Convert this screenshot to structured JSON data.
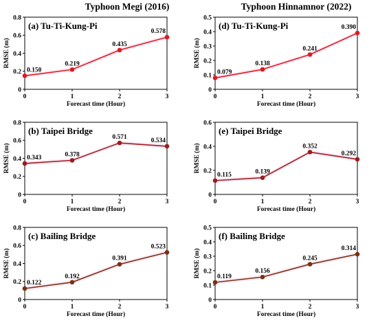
{
  "column_titles": [
    "Typhoon Megi (2016)",
    "Typhoon Hinnamnor (2022)"
  ],
  "chart_data": [
    {
      "type": "line",
      "panel": "(a) Tu-Ti-Kung-Pi",
      "column": "Typhoon Megi (2016)",
      "x": [
        0,
        1,
        2,
        3
      ],
      "values": [
        0.15,
        0.219,
        0.435,
        0.578
      ],
      "value_labels": [
        "0.150",
        "0.219",
        "0.435",
        "0.578"
      ],
      "xlabel": "Forecast time (Hour)",
      "ylabel": "RMSE (m)",
      "xlim": [
        0,
        3
      ],
      "ylim": [
        0,
        0.8
      ],
      "yticks": [
        "0",
        "0.2",
        "0.4",
        "0.6",
        "0.8"
      ],
      "xticks": [
        "0",
        "1",
        "2",
        "3"
      ],
      "color": "#e0191f",
      "grid": false
    },
    {
      "type": "line",
      "panel": "(b) Taipei Bridge",
      "column": "Typhoon Megi (2016)",
      "x": [
        0,
        1,
        2,
        3
      ],
      "values": [
        0.343,
        0.378,
        0.571,
        0.534
      ],
      "value_labels": [
        "0.343",
        "0.378",
        "0.571",
        "0.534"
      ],
      "xlabel": "Forecast time (Hour)",
      "ylabel": "RMSE (m)",
      "xlim": [
        0,
        3
      ],
      "ylim": [
        0,
        0.8
      ],
      "yticks": [
        "0",
        "0.2",
        "0.4",
        "0.6",
        "0.8"
      ],
      "xticks": [
        "0",
        "1",
        "2",
        "3"
      ],
      "color": "#9b1c1c",
      "grid": false
    },
    {
      "type": "line",
      "panel": "(c) Bailing Bridge",
      "column": "Typhoon Megi (2016)",
      "x": [
        0,
        1,
        2,
        3
      ],
      "values": [
        0.122,
        0.192,
        0.391,
        0.523
      ],
      "value_labels": [
        "0.122",
        "0.192",
        "0.391",
        "0.523"
      ],
      "xlabel": "Forecast time (Hour)",
      "ylabel": "RMSE (m)",
      "xlim": [
        0,
        3
      ],
      "ylim": [
        0,
        0.8
      ],
      "yticks": [
        "0",
        "0.2",
        "0.4",
        "0.6",
        "0.8"
      ],
      "xticks": [
        "0",
        "1",
        "2",
        "3"
      ],
      "color": "#7a3010",
      "grid": false
    },
    {
      "type": "line",
      "panel": "(d) Tu-Ti-Kung-Pi",
      "column": "Typhoon Hinnamnor (2022)",
      "x": [
        0,
        1,
        2,
        3
      ],
      "values": [
        0.079,
        0.138,
        0.241,
        0.39
      ],
      "value_labels": [
        "0.079",
        "0.138",
        "0.241",
        "0.390"
      ],
      "xlabel": "Forecast time (Hour)",
      "ylabel": "RMSE (m)",
      "xlim": [
        0,
        3
      ],
      "ylim": [
        0,
        0.5
      ],
      "yticks": [
        "0",
        "0.1",
        "0.2",
        "0.3",
        "0.4",
        "0.5"
      ],
      "xticks": [
        "0",
        "1",
        "2",
        "3"
      ],
      "color": "#e0191f",
      "grid": false
    },
    {
      "type": "line",
      "panel": "(e) Taipei Bridge",
      "column": "Typhoon Hinnamnor (2022)",
      "x": [
        0,
        1,
        2,
        3
      ],
      "values": [
        0.115,
        0.139,
        0.352,
        0.292
      ],
      "value_labels": [
        "0.115",
        "0.139",
        "0.352",
        "0.292"
      ],
      "xlabel": "Forecast time (Hour)",
      "ylabel": "RMSE (m)",
      "xlim": [
        0,
        3
      ],
      "ylim": [
        0,
        0.6
      ],
      "yticks": [
        "0",
        "0.2",
        "0.4",
        "0.6"
      ],
      "xticks": [
        "0",
        "1",
        "2",
        "3"
      ],
      "color": "#9b1c1c",
      "grid": false
    },
    {
      "type": "line",
      "panel": "(f) Bailing Bridge",
      "column": "Typhoon Hinnamnor (2022)",
      "x": [
        0,
        1,
        2,
        3
      ],
      "values": [
        0.119,
        0.156,
        0.245,
        0.314
      ],
      "value_labels": [
        "0.119",
        "0.156",
        "0.245",
        "0.314"
      ],
      "xlabel": "Forecast time (Hour)",
      "ylabel": "RMSE (m)",
      "xlim": [
        0,
        3
      ],
      "ylim": [
        0,
        0.5
      ],
      "yticks": [
        "0",
        "0.1",
        "0.2",
        "0.3",
        "0.4",
        "0.5"
      ],
      "xticks": [
        "0",
        "1",
        "2",
        "3"
      ],
      "color": "#7a3010",
      "grid": false
    }
  ]
}
